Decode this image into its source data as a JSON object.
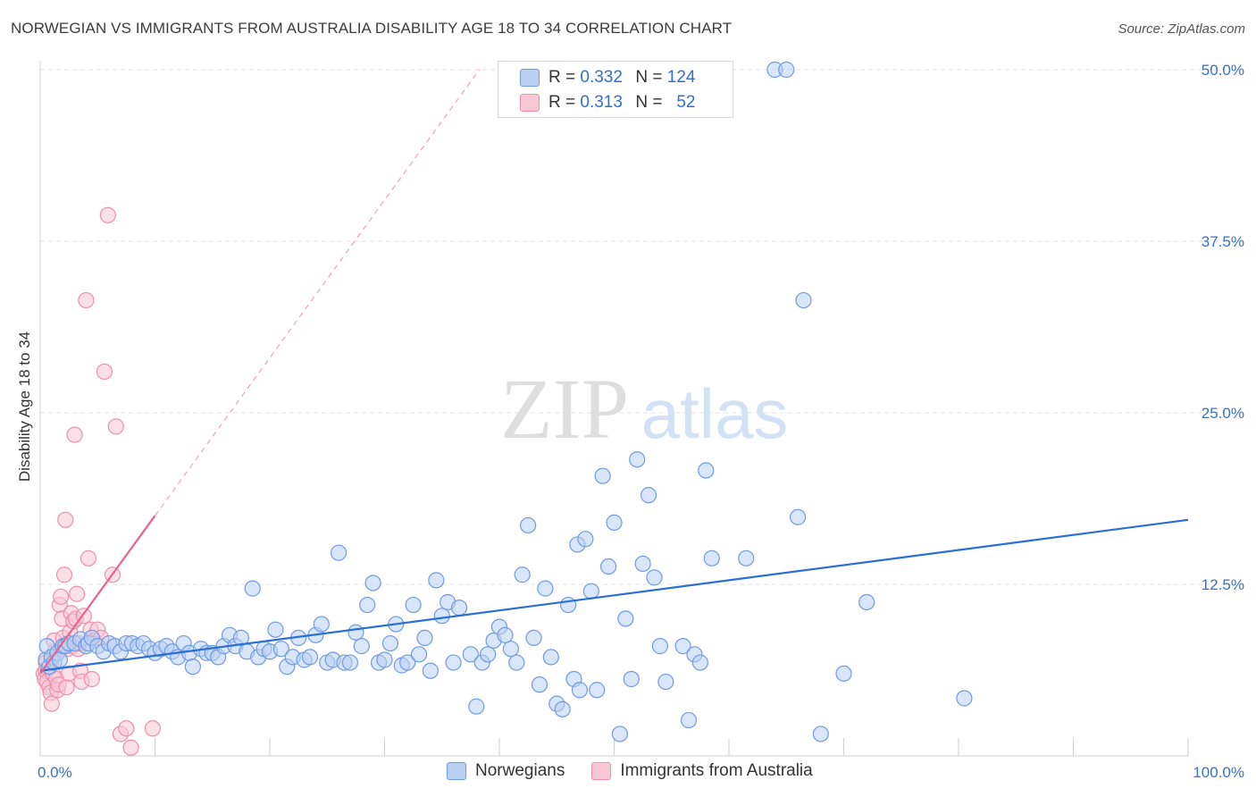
{
  "header": {
    "title": "NORWEGIAN VS IMMIGRANTS FROM AUSTRALIA DISABILITY AGE 18 TO 34 CORRELATION CHART",
    "source": "Source: ZipAtlas.com"
  },
  "watermark": {
    "zip": "ZIP",
    "atlas": "atlas"
  },
  "legend": {
    "r_label": "R =",
    "n_label": "N =",
    "series": [
      {
        "r": "0.332",
        "n": "124"
      },
      {
        "r": "0.313",
        "n": "52"
      }
    ]
  },
  "bottom_legend": [
    "Norwegians",
    "Immigrants from Australia"
  ],
  "colors": {
    "blue_fill": "#b9d0f2",
    "blue_stroke": "#6f9be3",
    "blue_line": "#2a6fd4",
    "pink_fill": "#f8c7d6",
    "pink_stroke": "#ee8fac",
    "pink_line": "#e8628e",
    "axis_label": "#3572c9",
    "grid": "#e3e3e3"
  },
  "chart_data": {
    "type": "scatter",
    "title": "NORWEGIAN VS IMMIGRANTS FROM AUSTRALIA DISABILITY AGE 18 TO 34 CORRELATION CHART",
    "xlabel": "",
    "ylabel": "Disability Age 18 to 34",
    "xlim": [
      0,
      100
    ],
    "ylim": [
      0,
      50
    ],
    "x_tick_labels": [
      "0.0%",
      "100.0%"
    ],
    "y_ticks": [
      12.5,
      25.0,
      37.5,
      50.0
    ],
    "y_tick_labels": [
      "12.5%",
      "25.0%",
      "37.5%",
      "50.0%"
    ],
    "grid": true,
    "series": [
      {
        "name": "Norwegians",
        "r": 0.332,
        "n": 124,
        "trend": {
          "x": [
            0,
            100
          ],
          "y": [
            6.2,
            17.2
          ]
        },
        "points": [
          [
            0.5,
            7.0
          ],
          [
            0.6,
            8.0
          ],
          [
            0.8,
            6.5
          ],
          [
            1.0,
            7.2
          ],
          [
            1.2,
            6.8
          ],
          [
            1.5,
            7.5
          ],
          [
            1.7,
            7.0
          ],
          [
            2.0,
            8.0
          ],
          [
            2.2,
            8.0
          ],
          [
            2.5,
            8.2
          ],
          [
            3.0,
            8.2
          ],
          [
            3.5,
            8.5
          ],
          [
            4.0,
            8.0
          ],
          [
            4.2,
            8.2
          ],
          [
            4.5,
            8.6
          ],
          [
            5.0,
            8.0
          ],
          [
            5.5,
            7.6
          ],
          [
            6.0,
            8.2
          ],
          [
            6.5,
            8.0
          ],
          [
            7.0,
            7.6
          ],
          [
            7.5,
            8.2
          ],
          [
            8.0,
            8.2
          ],
          [
            8.5,
            8.0
          ],
          [
            9.0,
            8.2
          ],
          [
            9.5,
            7.8
          ],
          [
            10.0,
            7.5
          ],
          [
            10.5,
            7.8
          ],
          [
            11.0,
            8.0
          ],
          [
            11.5,
            7.6
          ],
          [
            12.0,
            7.2
          ],
          [
            12.5,
            8.2
          ],
          [
            13.0,
            7.5
          ],
          [
            13.3,
            6.5
          ],
          [
            14.0,
            7.8
          ],
          [
            14.5,
            7.5
          ],
          [
            15.0,
            7.5
          ],
          [
            15.5,
            7.2
          ],
          [
            16.0,
            8.0
          ],
          [
            16.5,
            8.8
          ],
          [
            17.0,
            8.0
          ],
          [
            17.5,
            8.6
          ],
          [
            18.0,
            7.6
          ],
          [
            18.5,
            12.2
          ],
          [
            19.0,
            7.2
          ],
          [
            19.5,
            7.8
          ],
          [
            20.0,
            7.6
          ],
          [
            20.5,
            9.2
          ],
          [
            21.0,
            7.8
          ],
          [
            21.5,
            6.5
          ],
          [
            22.0,
            7.2
          ],
          [
            22.5,
            8.6
          ],
          [
            23.0,
            7.0
          ],
          [
            23.5,
            7.2
          ],
          [
            24.0,
            8.8
          ],
          [
            24.5,
            9.6
          ],
          [
            25.0,
            6.8
          ],
          [
            25.5,
            7.0
          ],
          [
            26.0,
            14.8
          ],
          [
            26.5,
            6.8
          ],
          [
            27.0,
            6.8
          ],
          [
            27.5,
            9.0
          ],
          [
            28.0,
            8.0
          ],
          [
            28.5,
            11.0
          ],
          [
            29.0,
            12.6
          ],
          [
            29.5,
            6.8
          ],
          [
            30.0,
            7.0
          ],
          [
            30.5,
            8.2
          ],
          [
            31.0,
            9.6
          ],
          [
            31.5,
            6.6
          ],
          [
            32.0,
            6.8
          ],
          [
            32.5,
            11.0
          ],
          [
            33.0,
            7.4
          ],
          [
            33.5,
            8.6
          ],
          [
            34.0,
            6.2
          ],
          [
            34.5,
            12.8
          ],
          [
            35.0,
            10.2
          ],
          [
            35.5,
            11.2
          ],
          [
            36.0,
            6.8
          ],
          [
            36.5,
            10.8
          ],
          [
            37.5,
            7.4
          ],
          [
            38.0,
            3.6
          ],
          [
            38.5,
            6.8
          ],
          [
            39.0,
            7.4
          ],
          [
            39.5,
            8.4
          ],
          [
            40.0,
            9.4
          ],
          [
            40.5,
            8.8
          ],
          [
            41.0,
            7.8
          ],
          [
            41.5,
            6.8
          ],
          [
            42.0,
            13.2
          ],
          [
            42.5,
            16.8
          ],
          [
            43.0,
            8.6
          ],
          [
            43.5,
            5.2
          ],
          [
            44.0,
            12.2
          ],
          [
            44.5,
            7.2
          ],
          [
            45.0,
            3.8
          ],
          [
            45.5,
            3.4
          ],
          [
            46.0,
            11.0
          ],
          [
            46.5,
            5.6
          ],
          [
            46.8,
            15.4
          ],
          [
            47.0,
            4.8
          ],
          [
            47.5,
            15.8
          ],
          [
            48.0,
            12.0
          ],
          [
            48.5,
            4.8
          ],
          [
            49.0,
            20.4
          ],
          [
            49.5,
            13.8
          ],
          [
            50.0,
            17.0
          ],
          [
            50.5,
            1.6
          ],
          [
            51.0,
            10.0
          ],
          [
            51.5,
            5.6
          ],
          [
            52.0,
            21.6
          ],
          [
            52.5,
            14.0
          ],
          [
            53.0,
            19.0
          ],
          [
            53.5,
            13.0
          ],
          [
            54.0,
            8.0
          ],
          [
            54.5,
            5.4
          ],
          [
            56.0,
            8.0
          ],
          [
            56.5,
            2.6
          ],
          [
            57.0,
            7.4
          ],
          [
            57.5,
            6.8
          ],
          [
            58.0,
            20.8
          ],
          [
            58.5,
            14.4
          ],
          [
            61.5,
            14.4
          ],
          [
            64.0,
            50.0
          ],
          [
            65.0,
            50.0
          ],
          [
            66.0,
            17.4
          ],
          [
            66.5,
            33.2
          ],
          [
            68.0,
            1.6
          ],
          [
            70.0,
            6.0
          ],
          [
            72.0,
            11.2
          ],
          [
            80.5,
            4.2
          ]
        ]
      },
      {
        "name": "Immigrants from Australia",
        "r": 0.313,
        "n": 52,
        "trend": {
          "x": [
            0,
            10
          ],
          "y": [
            6.0,
            17.5
          ]
        },
        "points": [
          [
            0.3,
            6.0
          ],
          [
            0.4,
            5.6
          ],
          [
            0.5,
            6.2
          ],
          [
            0.6,
            5.4
          ],
          [
            0.7,
            6.4
          ],
          [
            0.8,
            5.0
          ],
          [
            0.9,
            4.6
          ],
          [
            1.0,
            3.8
          ],
          [
            1.1,
            6.0
          ],
          [
            1.2,
            8.4
          ],
          [
            1.3,
            7.6
          ],
          [
            1.4,
            5.6
          ],
          [
            1.5,
            4.8
          ],
          [
            1.6,
            5.2
          ],
          [
            1.7,
            11.0
          ],
          [
            1.8,
            11.6
          ],
          [
            1.9,
            10.0
          ],
          [
            2.0,
            8.6
          ],
          [
            2.1,
            13.2
          ],
          [
            2.2,
            17.2
          ],
          [
            2.3,
            5.0
          ],
          [
            2.4,
            7.8
          ],
          [
            2.5,
            6.0
          ],
          [
            2.6,
            9.0
          ],
          [
            2.7,
            10.4
          ],
          [
            2.8,
            8.0
          ],
          [
            2.9,
            9.8
          ],
          [
            3.0,
            23.4
          ],
          [
            3.1,
            10.0
          ],
          [
            3.2,
            11.8
          ],
          [
            3.3,
            7.8
          ],
          [
            3.4,
            8.2
          ],
          [
            3.5,
            6.2
          ],
          [
            3.6,
            5.4
          ],
          [
            3.8,
            10.2
          ],
          [
            4.0,
            33.2
          ],
          [
            4.2,
            14.4
          ],
          [
            4.4,
            9.2
          ],
          [
            4.5,
            5.6
          ],
          [
            4.7,
            8.4
          ],
          [
            5.0,
            9.2
          ],
          [
            5.3,
            8.6
          ],
          [
            5.6,
            28.0
          ],
          [
            5.9,
            39.4
          ],
          [
            6.3,
            13.2
          ],
          [
            6.6,
            24.0
          ],
          [
            7.0,
            1.6
          ],
          [
            7.5,
            2.0
          ],
          [
            7.9,
            0.6
          ],
          [
            9.8,
            2.0
          ],
          [
            0.5,
            6.8
          ],
          [
            1.0,
            7.0
          ]
        ]
      }
    ]
  }
}
